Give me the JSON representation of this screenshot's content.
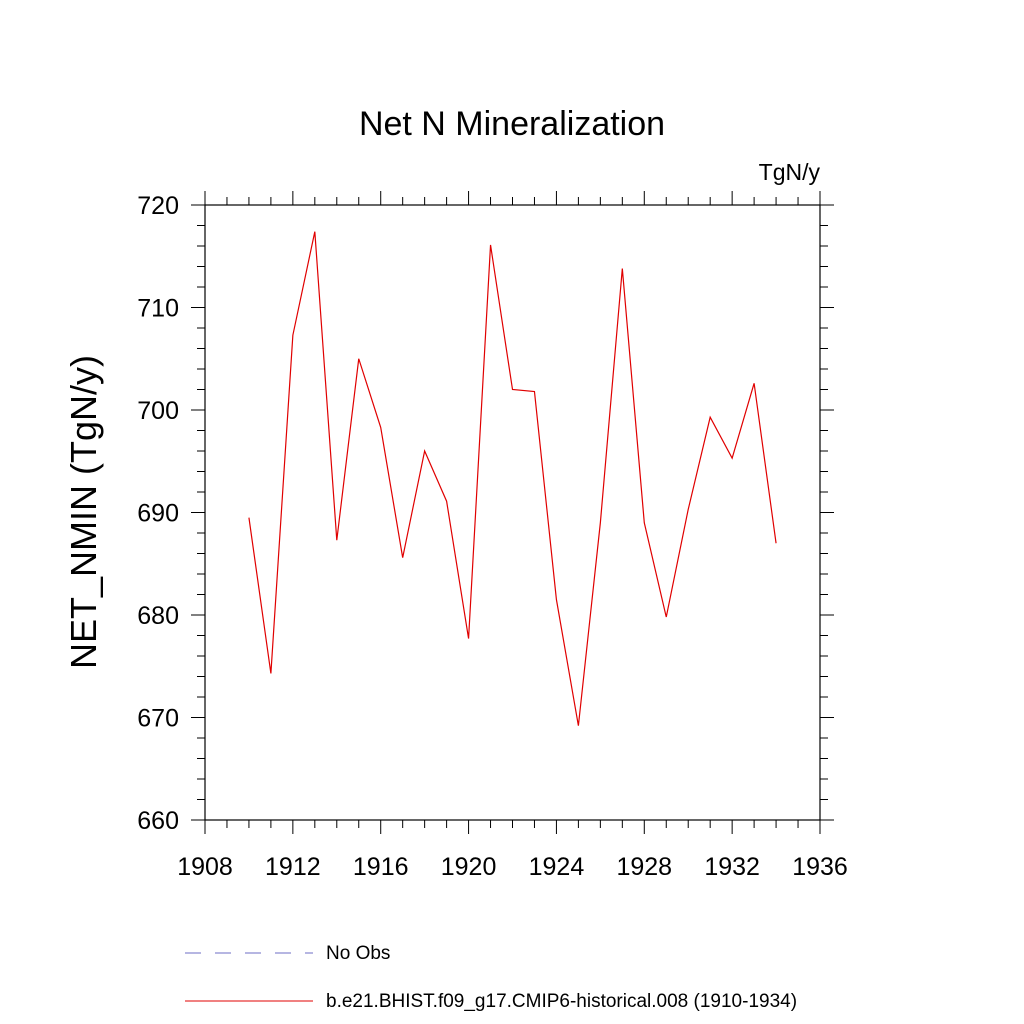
{
  "chart_data": {
    "type": "line",
    "title": "Net N Mineralization",
    "units_label": "TgN/y",
    "xlabel": "",
    "ylabel": "NET_NMIN  (TgN/y)",
    "xlim": [
      1908,
      1936
    ],
    "ylim": [
      660,
      720
    ],
    "x_ticks": [
      1908,
      1912,
      1916,
      1920,
      1924,
      1928,
      1932,
      1936
    ],
    "y_ticks": [
      660,
      670,
      680,
      690,
      700,
      710,
      720
    ],
    "series": [
      {
        "name": "b.e21.BHIST.f09_g17.CMIP6-historical.008 (1910-1934)",
        "color": "#e00000",
        "style": "solid",
        "x": [
          1910,
          1911,
          1912,
          1913,
          1914,
          1915,
          1916,
          1917,
          1918,
          1919,
          1920,
          1921,
          1922,
          1923,
          1924,
          1925,
          1926,
          1927,
          1928,
          1929,
          1930,
          1931,
          1932,
          1933,
          1934
        ],
        "values": [
          689.5,
          674.3,
          707.3,
          717.4,
          687.3,
          705.0,
          698.3,
          685.6,
          696.0,
          691.1,
          677.7,
          716.1,
          702.0,
          701.8,
          681.5,
          669.2,
          689.0,
          713.8,
          689.0,
          679.8,
          690.3,
          699.3,
          695.3,
          702.6,
          687.0
        ]
      }
    ],
    "legend": [
      {
        "label": "No Obs",
        "color": "#6c6cc4",
        "style": "dashed"
      },
      {
        "label": "b.e21.BHIST.f09_g17.CMIP6-historical.008 (1910-1934)",
        "color": "#e00000",
        "style": "solid"
      }
    ]
  }
}
